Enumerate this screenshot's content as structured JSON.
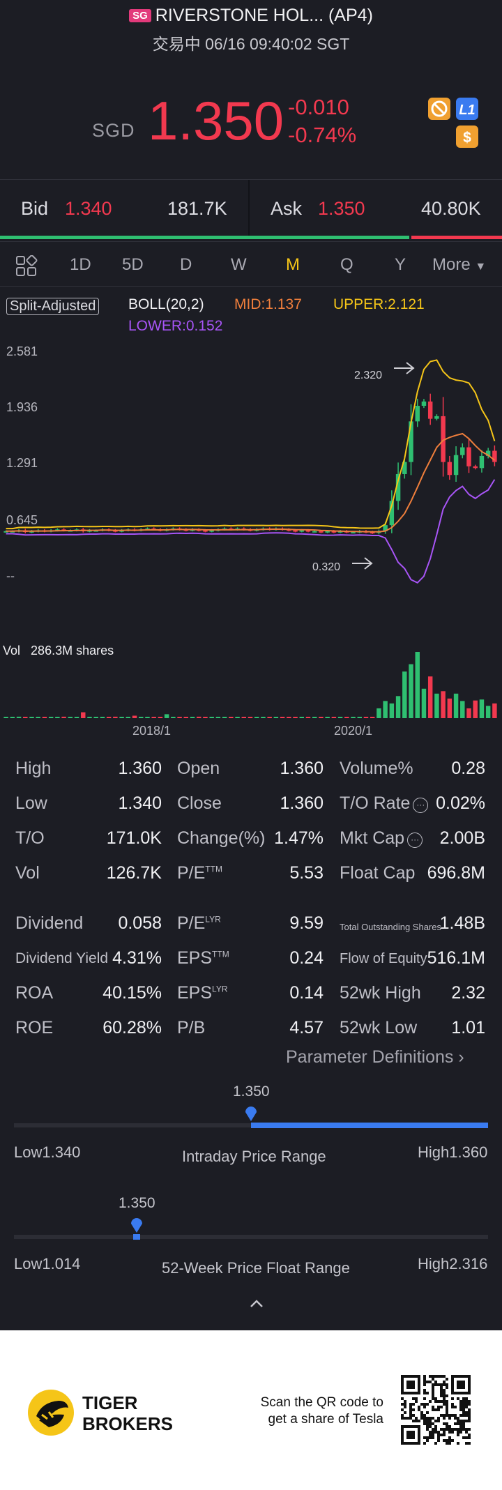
{
  "header": {
    "market_badge": "SG",
    "title": "RIVERSTONE HOL... (AP4)",
    "subtitle": "交易中 06/16 09:40:02 SGT"
  },
  "quote": {
    "currency": "SGD",
    "price": "1.350",
    "change": "-0.010",
    "change_pct": "-0.74%",
    "badges": [
      "no-ads-icon",
      "L1",
      "$"
    ]
  },
  "bidask": {
    "bid_label": "Bid",
    "bid_price": "1.340",
    "bid_size": "181.7K",
    "ask_label": "Ask",
    "ask_price": "1.350",
    "ask_size": "40.80K",
    "bid_share": 0.815
  },
  "tabs": [
    "1D",
    "5D",
    "D",
    "W",
    "M",
    "Q",
    "Y",
    "More"
  ],
  "active_tab": "M",
  "chart": {
    "adjust_label": "Split-Adjusted",
    "indicator": "BOLL(20,2)",
    "mid": "MID:1.137",
    "upper": "UPPER:2.121",
    "lower": "LOWER:0.152",
    "y_ticks": [
      "2.581",
      "1.936",
      "1.291",
      "0.645",
      "--"
    ],
    "max_label": "2.320",
    "min_label": "0.320",
    "vol_label": "Vol",
    "vol_value": "286.3M shares",
    "x_ticks": [
      "2018/1",
      "2020/1"
    ],
    "colors": {
      "up": "#2fbf71",
      "down": "#f2394f",
      "mid": "#f07f3c",
      "upper": "#f5c518",
      "lower": "#a855f7"
    }
  },
  "chart_data": {
    "type": "candlestick",
    "ylim": [
      0,
      2.581
    ],
    "price_path": [
      0.55,
      0.55,
      0.56,
      0.54,
      0.55,
      0.56,
      0.55,
      0.56,
      0.57,
      0.56,
      0.56,
      0.57,
      0.55,
      0.56,
      0.56,
      0.57,
      0.56,
      0.55,
      0.56,
      0.57,
      0.56,
      0.57,
      0.58,
      0.57,
      0.56,
      0.57,
      0.58,
      0.57,
      0.56,
      0.57,
      0.56,
      0.55,
      0.56,
      0.57,
      0.58,
      0.57,
      0.58,
      0.57,
      0.56,
      0.57,
      0.58,
      0.57,
      0.58,
      0.57,
      0.56,
      0.55,
      0.56,
      0.55,
      0.55,
      0.54,
      0.55,
      0.54,
      0.55,
      0.54,
      0.54,
      0.55,
      0.54,
      0.53,
      0.55,
      0.62,
      0.9,
      1.21,
      1.35,
      1.82,
      2.0,
      2.05,
      1.85,
      1.88,
      1.35,
      1.2,
      1.43,
      1.52,
      1.3,
      1.28,
      1.42,
      1.48,
      1.35
    ],
    "volumes": [
      2,
      2,
      3,
      1,
      2,
      1,
      2,
      1,
      2,
      3,
      1,
      2,
      12,
      2,
      1,
      2,
      1,
      3,
      2,
      1,
      5,
      2,
      2,
      1,
      2,
      8,
      2,
      1,
      2,
      1,
      3,
      1,
      2,
      1,
      2,
      1,
      1,
      2,
      1,
      2,
      1,
      1,
      2,
      1,
      2,
      1,
      2,
      1,
      1,
      1,
      1,
      2,
      1,
      1,
      1,
      1,
      1,
      1,
      20,
      35,
      30,
      45,
      95,
      110,
      135,
      60,
      85,
      50,
      55,
      40,
      50,
      35,
      20,
      36,
      38,
      25,
      30
    ]
  },
  "stats": [
    {
      "l1": "High",
      "v1": "1.360",
      "l2": "Open",
      "v2": "1.360",
      "l3": "Volume%",
      "v3": "0.28"
    },
    {
      "l1": "Low",
      "v1": "1.340",
      "l2": "Close",
      "v2": "1.360",
      "l3": "T/O Rate",
      "v3": "0.02%"
    },
    {
      "l1": "T/O",
      "v1": "171.0K",
      "l2": "Change(%)",
      "v2": "1.47%",
      "l3": "Mkt Cap",
      "v3": "2.00B"
    },
    {
      "l1": "Vol",
      "v1": "126.7K",
      "l2": "P/E",
      "s2": "TTM",
      "v2": "5.53",
      "l3": "Float Cap",
      "v3": "696.8M"
    },
    {
      "l1": "Dividend",
      "v1": "0.058",
      "l2": "P/E",
      "s2": "LYR",
      "v2": "9.59",
      "l3": "Total Outstanding Shares",
      "v3": "1.48B"
    },
    {
      "l1": "Dividend Yield",
      "v1": "4.31%",
      "l2": "EPS",
      "s2": "TTM",
      "v2": "0.24",
      "l3": "Flow of Equity",
      "v3": "516.1M"
    },
    {
      "l1": "ROA",
      "v1": "40.15%",
      "l2": "EPS",
      "s2": "LYR",
      "v2": "0.14",
      "l3": "52wk High",
      "v3": "2.32"
    },
    {
      "l1": "ROE",
      "v1": "60.28%",
      "l2": "P/B",
      "v2": "4.57",
      "l3": "52wk Low",
      "v3": "1.01"
    }
  ],
  "param_def": "Parameter Definitions",
  "intraday": {
    "current": "1.350",
    "low": "Low1.340",
    "high": "High1.360",
    "caption": "Intraday Price Range",
    "position": 0.5
  },
  "week52": {
    "current": "1.350",
    "low": "Low1.014",
    "high": "High2.316",
    "caption": "52-Week Price Float Range",
    "position": 0.26
  },
  "footer": {
    "brand_line1": "TIGER",
    "brand_line2": "BROKERS",
    "scan_line1": "Scan the QR code to",
    "scan_line2": "get a share of Tesla"
  }
}
